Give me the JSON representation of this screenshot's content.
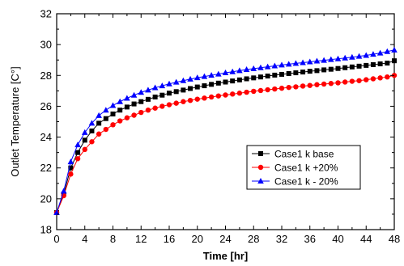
{
  "chart_data": {
    "type": "line",
    "xlabel": "Time [hr]",
    "ylabel": "Outlet Temperature [C°]",
    "xlim": [
      0,
      48
    ],
    "ylim": [
      18,
      32
    ],
    "xticks": [
      0,
      4,
      8,
      12,
      16,
      20,
      24,
      28,
      32,
      36,
      40,
      44,
      48
    ],
    "yticks": [
      18,
      20,
      22,
      24,
      26,
      28,
      30,
      32
    ],
    "grid": false,
    "legend": {
      "placement": "center-right"
    },
    "x": [
      0,
      1,
      2,
      3,
      4,
      5,
      6,
      7,
      8,
      9,
      10,
      11,
      12,
      13,
      14,
      15,
      16,
      17,
      18,
      19,
      20,
      21,
      22,
      23,
      24,
      25,
      26,
      27,
      28,
      29,
      30,
      31,
      32,
      33,
      34,
      35,
      36,
      37,
      38,
      39,
      40,
      41,
      42,
      43,
      44,
      45,
      46,
      47,
      48
    ],
    "series": [
      {
        "name": "Case1 k base",
        "color": "#000000",
        "marker": "square",
        "values": [
          19.1,
          20.3,
          22.0,
          23.0,
          23.8,
          24.4,
          24.9,
          25.2,
          25.5,
          25.75,
          25.95,
          26.15,
          26.3,
          26.45,
          26.6,
          26.72,
          26.85,
          26.95,
          27.05,
          27.15,
          27.25,
          27.33,
          27.42,
          27.5,
          27.57,
          27.64,
          27.71,
          27.78,
          27.84,
          27.9,
          27.96,
          28.02,
          28.07,
          28.12,
          28.17,
          28.22,
          28.27,
          28.31,
          28.36,
          28.4,
          28.45,
          28.5,
          28.55,
          28.6,
          28.65,
          28.7,
          28.75,
          28.8,
          28.95
        ]
      },
      {
        "name": "Case1 k +20%",
        "color": "#ff0000",
        "marker": "circle",
        "values": [
          19.1,
          20.2,
          21.6,
          22.6,
          23.2,
          23.7,
          24.2,
          24.5,
          24.8,
          25.05,
          25.25,
          25.42,
          25.6,
          25.75,
          25.88,
          26.0,
          26.1,
          26.2,
          26.3,
          26.38,
          26.46,
          26.53,
          26.6,
          26.67,
          26.73,
          26.79,
          26.85,
          26.91,
          26.97,
          27.02,
          27.07,
          27.12,
          27.17,
          27.22,
          27.26,
          27.31,
          27.35,
          27.4,
          27.44,
          27.48,
          27.52,
          27.57,
          27.62,
          27.66,
          27.72,
          27.78,
          27.84,
          27.9,
          28.0
        ]
      },
      {
        "name": "Case1 k - 20%",
        "color": "#0000ff",
        "marker": "triangle",
        "values": [
          19.1,
          20.5,
          22.4,
          23.5,
          24.3,
          24.9,
          25.4,
          25.75,
          26.05,
          26.3,
          26.52,
          26.72,
          26.9,
          27.05,
          27.2,
          27.33,
          27.45,
          27.56,
          27.66,
          27.76,
          27.85,
          27.93,
          28.01,
          28.09,
          28.17,
          28.24,
          28.31,
          28.38,
          28.44,
          28.5,
          28.56,
          28.62,
          28.68,
          28.73,
          28.78,
          28.83,
          28.88,
          28.93,
          28.98,
          29.03,
          29.08,
          29.13,
          29.18,
          29.24,
          29.3,
          29.37,
          29.45,
          29.55,
          29.65
        ]
      }
    ]
  }
}
